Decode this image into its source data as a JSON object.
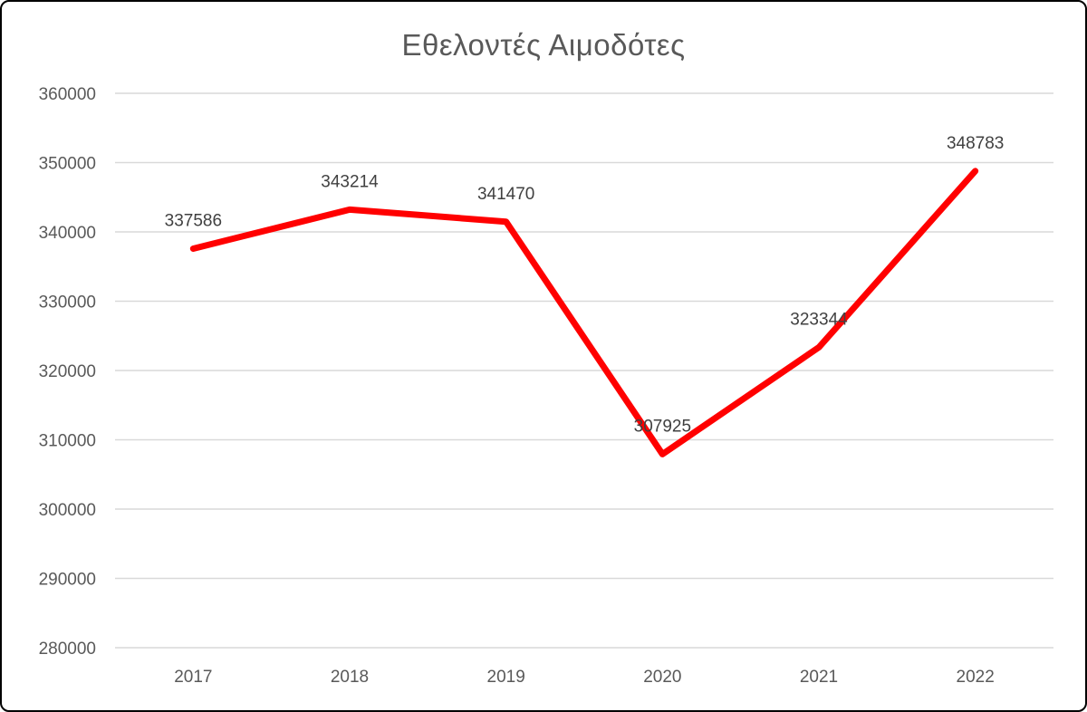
{
  "chart_data": {
    "type": "line",
    "title": "Εθελοντές Αιμοδότες",
    "categories": [
      "2017",
      "2018",
      "2019",
      "2020",
      "2021",
      "2022"
    ],
    "series": [
      {
        "name": "Εθελοντές Αιμοδότες",
        "values": [
          337586,
          343214,
          341470,
          307925,
          323344,
          348783
        ]
      }
    ],
    "data_labels": [
      "337586",
      "343214",
      "341470",
      "307925",
      "323344",
      "348783"
    ],
    "xlabel": "",
    "ylabel": "",
    "ylim": [
      280000,
      360000
    ],
    "y_ticks": [
      "360000",
      "350000",
      "340000",
      "330000",
      "320000",
      "310000",
      "300000",
      "290000",
      "280000"
    ],
    "y_tick_step": 10000,
    "grid": "horizontal",
    "legend": "none",
    "colors": {
      "line": "#FF0000",
      "title": "#595959",
      "axis_label": "#595959",
      "data_label": "#404040",
      "gridline": "#D9D9D9",
      "background": "#FFFFFF",
      "frame_border": "#000000"
    }
  }
}
